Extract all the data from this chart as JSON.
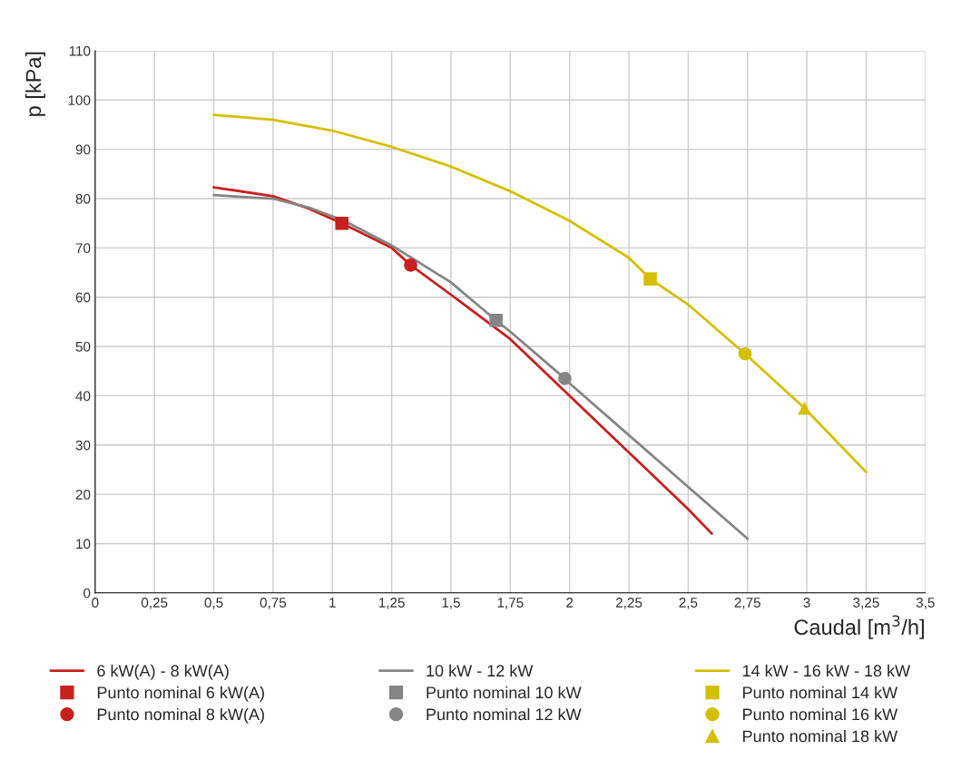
{
  "chart_data": {
    "type": "line",
    "xlabel": "Caudal [m$^{3}$/h]",
    "ylabel": "p [kPa]",
    "xlim": [
      0,
      3.5
    ],
    "ylim": [
      0,
      110
    ],
    "xticks": [
      0,
      {
        "value": 0.25,
        "label": "0,25"
      },
      {
        "value": 0.5,
        "label": "0,5"
      },
      {
        "value": 0.75,
        "label": "0,75"
      },
      1,
      {
        "value": 1.25,
        "label": "1,25"
      },
      {
        "value": 1.5,
        "label": "1,5"
      },
      {
        "value": 1.75,
        "label": "1,75"
      },
      2,
      {
        "value": 2.25,
        "label": "2,25"
      },
      {
        "value": 2.5,
        "label": "2,5"
      },
      {
        "value": 2.75,
        "label": "2,75"
      },
      3,
      {
        "value": 3.25,
        "label": "3,25"
      },
      {
        "value": 3.5,
        "label": "3,5"
      }
    ],
    "yticks": [
      0,
      10,
      20,
      30,
      40,
      50,
      60,
      70,
      80,
      90,
      100,
      110
    ],
    "grid": true,
    "legend": "bottom",
    "series": [
      {
        "name": "6 kW(A) - 8 kW(A)",
        "color": "#c8201e",
        "x": [
          0.5,
          0.75,
          0.9,
          1.04,
          1.25,
          1.33,
          1.5,
          1.75,
          2,
          2.25,
          2.5,
          2.6
        ],
        "values": [
          82.3,
          80.5,
          78,
          75,
          70,
          66.5,
          60.5,
          51.5,
          40,
          28.5,
          17,
          12
        ]
      },
      {
        "name": "Punto nominal 6 kW(A)",
        "type": "scatter",
        "marker": "square",
        "color": "#c8201e",
        "x": [
          1.04
        ],
        "values": [
          75
        ]
      },
      {
        "name": "Punto nominal 8 kW(A)",
        "type": "scatter",
        "marker": "circle",
        "color": "#c8201e",
        "x": [
          1.33
        ],
        "values": [
          66.5
        ]
      },
      {
        "name": "10 kW - 12 kW",
        "color": "#858585",
        "x": [
          0.5,
          0.75,
          0.9,
          1.05,
          1.25,
          1.5,
          1.69,
          1.75,
          1.98,
          2,
          2.25,
          2.5,
          2.75
        ],
        "values": [
          80.7,
          80,
          78.2,
          75.5,
          70.5,
          63,
          55.3,
          53,
          43.5,
          42.5,
          32,
          21.5,
          11
        ]
      },
      {
        "name": "Punto nominal 10 kW",
        "type": "scatter",
        "marker": "square",
        "color": "#858585",
        "x": [
          1.69
        ],
        "values": [
          55.3
        ]
      },
      {
        "name": "Punto nominal 12 kW",
        "type": "scatter",
        "marker": "circle",
        "color": "#858585",
        "x": [
          1.98
        ],
        "values": [
          43.5
        ]
      },
      {
        "name": "14 kW - 16 kW - 18 kW",
        "color": "#d4bf00",
        "x": [
          0.5,
          0.75,
          1,
          1.25,
          1.5,
          1.75,
          2,
          2.25,
          2.34,
          2.5,
          2.74,
          2.99,
          3.25
        ],
        "values": [
          97,
          96,
          93.8,
          90.5,
          86.5,
          81.5,
          75.5,
          68,
          63.7,
          58.5,
          48.5,
          37.5,
          24.5
        ]
      },
      {
        "name": "Punto nominal 14 kW",
        "type": "scatter",
        "marker": "square",
        "color": "#d4bf00",
        "x": [
          2.34
        ],
        "values": [
          63.7
        ]
      },
      {
        "name": "Punto nominal 16 kW",
        "type": "scatter",
        "marker": "circle",
        "color": "#d4bf00",
        "x": [
          2.74
        ],
        "values": [
          48.5
        ]
      },
      {
        "name": "Punto nominal 18 kW",
        "type": "scatter",
        "marker": "triangle",
        "color": "#d4bf00",
        "x": [
          2.99
        ],
        "values": [
          37.5
        ]
      }
    ]
  }
}
